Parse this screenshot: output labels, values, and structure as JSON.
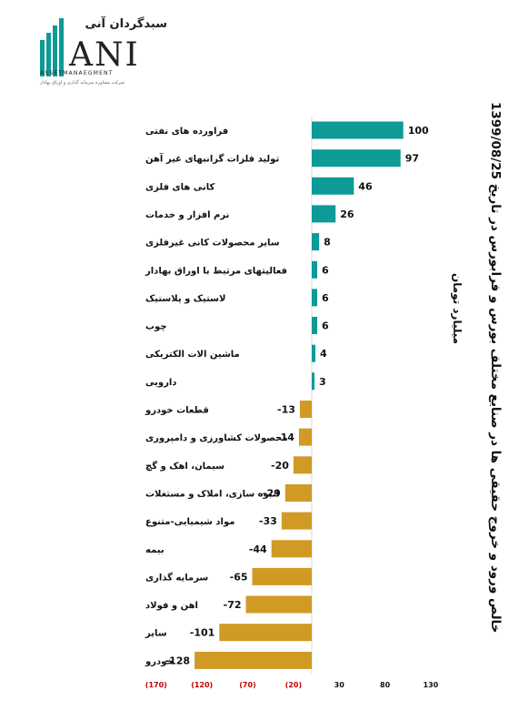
{
  "logo": {
    "persian_name": "سبدگردان آنی",
    "letters": "ANI",
    "subtitle": "ASSETMANAEGMENT",
    "tagline": "شرکت مشاوره سرمایه گذاری و اوراق بهادار"
  },
  "colors": {
    "positive": "#0e9a96",
    "negative": "#d09a25",
    "neg_tick": "#c00000",
    "pos_tick": "#111111"
  },
  "chart_data": {
    "type": "bar",
    "orientation": "horizontal",
    "title": "خالص ورود و خروج حقیقی ها در صنایع مختلف بورس و فرابورس در تاریخ 1399/08/25",
    "unit_label": "میلیارد تومان",
    "categories": [
      "فراورده های نفتی",
      "تولید فلزات گرانبهای غیر آهن",
      "کانی های فلزی",
      "نرم افزار و خدمات",
      "سایر محصولات کانی غیرفلزی",
      "فعالیتهای مرتبط با اوراق بهادار",
      "لاستیک و پلاستیک",
      "چوب",
      "ماشین الات الکتریکی",
      "دارویی",
      "قطعات خودرو",
      "محصولات کشاورزی و دامپروری",
      "سیمان، اهک و گچ",
      "انبوه سازی، املاک و مستغلات",
      "مواد شیمیایی-متنوع",
      "بیمه",
      "سرمایه گذاری",
      "اهن و فولاد",
      "سایر",
      "خودرو"
    ],
    "values": [
      100,
      97,
      46,
      26,
      8,
      6,
      6,
      6,
      4,
      3,
      -13,
      -14,
      -20,
      -29,
      -33,
      -44,
      -65,
      -72,
      -101,
      -128
    ],
    "value_labels": [
      "100",
      "97",
      "46",
      "26",
      "8",
      "6",
      "6",
      "6",
      "4",
      "3",
      "-13",
      "-14",
      "-20",
      "-29",
      "-33",
      "-44",
      "-65",
      "-72",
      "-101",
      "-128"
    ],
    "x_ticks": [
      -170,
      -120,
      -70,
      -20,
      30,
      80,
      130
    ],
    "x_tick_labels": [
      "(170)",
      "(120)",
      "(70)",
      "(20)",
      "30",
      "80",
      "130"
    ],
    "xlim": [
      -170,
      130
    ],
    "grid": false,
    "legend": "none"
  }
}
